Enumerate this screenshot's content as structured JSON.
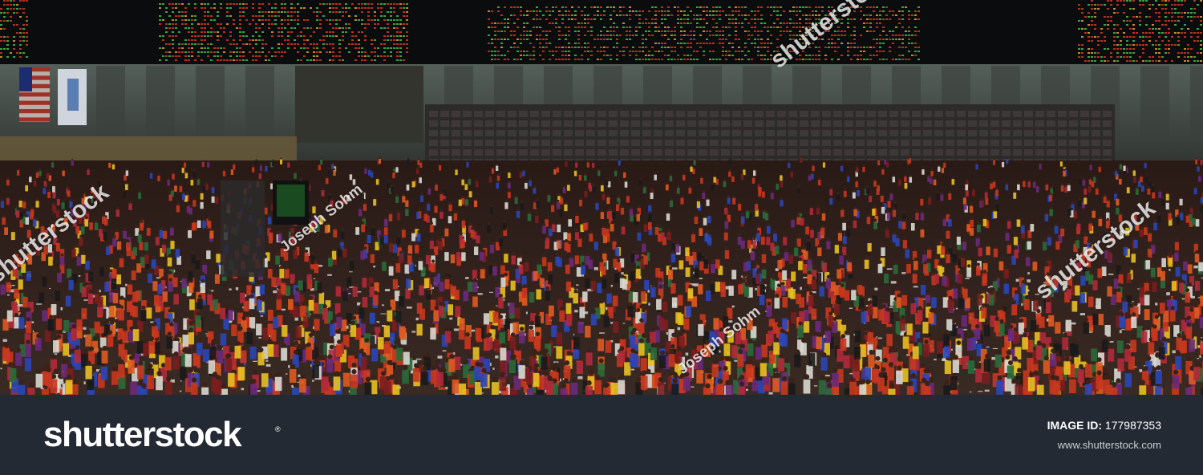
{
  "footer": {
    "logo": "shutterstock",
    "logo_mark": "®",
    "image_id_label": "IMAGE ID:",
    "image_id_value": "177987353",
    "site_url": "www.shutterstock.com"
  },
  "watermarks": {
    "brand": "shutterstock",
    "photographer": "Joseph Sohm"
  },
  "colors": {
    "footer_bg": "#232a33",
    "board_bg": "#0b0c0e",
    "board_red": "#d23a1f",
    "board_green": "#3fbf4a",
    "crowd_red": "#c8371e",
    "crowd_yellow": "#e8c020",
    "crowd_blue": "#2a46b8"
  }
}
